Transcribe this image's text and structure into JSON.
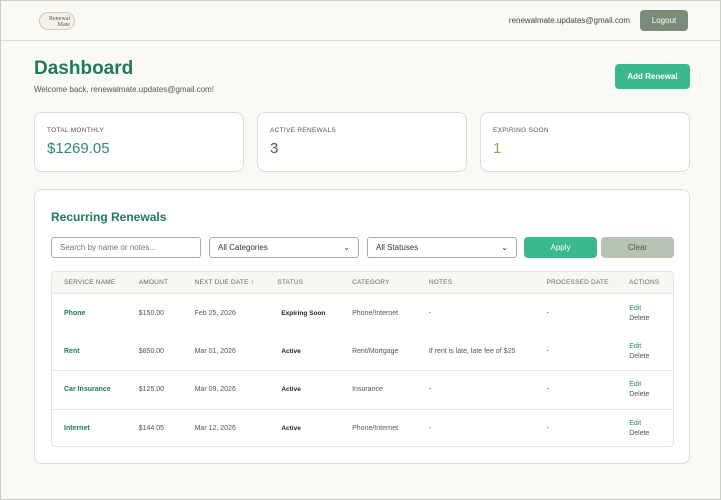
{
  "header": {
    "logo": "Renewal Mate",
    "email": "renewalmate.updates@gmail.com",
    "logout": "Logout"
  },
  "page": {
    "title": "Dashboard",
    "welcome": "Welcome back, renewalmate.updates@gmail.com!",
    "add": "Add Renewal"
  },
  "stats": [
    {
      "label": "TOTAL MONTHLY",
      "value": "$1269.05",
      "color": "#2a8c6a"
    },
    {
      "label": "ACTIVE RENEWALS",
      "value": "3",
      "color": "#555555"
    },
    {
      "label": "EXPIRING SOON",
      "value": "1",
      "color": "#b09a50"
    }
  ],
  "panel": {
    "title": "Recurring Renewals",
    "search_placeholder": "Search by name or notes...",
    "category": "All Categories",
    "status": "All Statuses",
    "apply": "Apply",
    "clear": "Clear"
  },
  "table": {
    "headers": [
      "SERVICE NAME",
      "AMOUNT",
      "NEXT DUE DATE ↑",
      "STATUS",
      "CATEGORY",
      "NOTES",
      "PROCESSED DATE",
      "ACTIONS"
    ],
    "rows": [
      {
        "name": "Phone",
        "amount": "$150.00",
        "due": "Feb 25, 2026",
        "status": "Expiring Soon",
        "category": "Phone/Internet",
        "notes": "-",
        "processed": "-"
      },
      {
        "name": "Rent",
        "amount": "$850.00",
        "due": "Mar 01, 2026",
        "status": "Active",
        "category": "Rent/Mortgage",
        "notes": "If rent is late, late fee of $25",
        "processed": "-"
      },
      {
        "name": "Car Insurance",
        "amount": "$125.00",
        "due": "Mar 09, 2026",
        "status": "Active",
        "category": "Insurance",
        "notes": "-",
        "processed": "-"
      },
      {
        "name": "Internet",
        "amount": "$144.05",
        "due": "Mar 12, 2026",
        "status": "Active",
        "category": "Phone/Internet",
        "notes": "-",
        "processed": "-"
      }
    ],
    "edit": "Edit",
    "delete": "Delete"
  }
}
